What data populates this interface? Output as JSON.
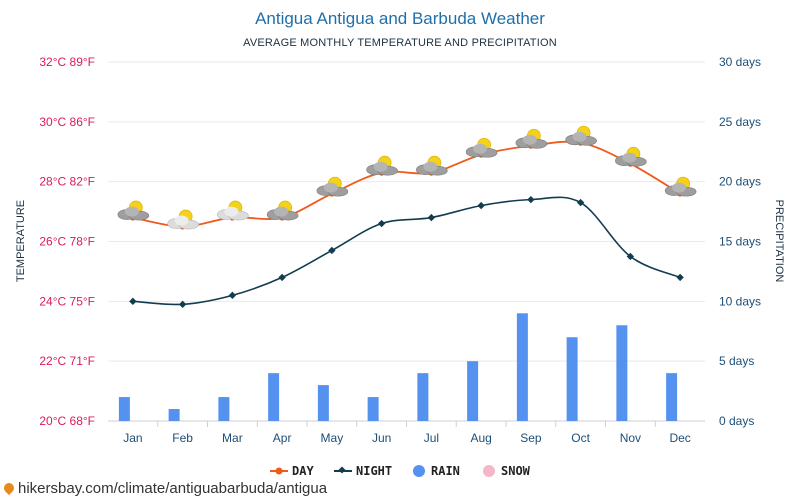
{
  "title": "Antigua Antigua and Barbuda Weather",
  "subtitle": "AVERAGE MONTHLY TEMPERATURE AND PRECIPITATION",
  "left_axis": {
    "label": "TEMPERATURE",
    "ticks": [
      "20°C 68°F",
      "22°C 71°F",
      "24°C 75°F",
      "26°C 78°F",
      "28°C 82°F",
      "30°C 86°F",
      "32°C 89°F"
    ]
  },
  "right_axis": {
    "label": "PRECIPITATION",
    "ticks": [
      "0 days",
      "5 days",
      "10 days",
      "15 days",
      "20 days",
      "25 days",
      "30 days"
    ]
  },
  "source": "hikersbay.com/climate/antiguabarbuda/antigua",
  "colors": {
    "day": "#f05a1a",
    "night": "#123d4f",
    "rain": "#5592f0",
    "snow": "#f5b6c8",
    "left_axis": "#d81b60",
    "right_axis": "#1c4f78"
  },
  "chart_data": {
    "type": "line",
    "categories": [
      "Jan",
      "Feb",
      "Mar",
      "Apr",
      "May",
      "Jun",
      "Jul",
      "Aug",
      "Sep",
      "Oct",
      "Nov",
      "Dec"
    ],
    "left_ylim": [
      20,
      32
    ],
    "right_ylim": [
      0,
      30
    ],
    "grid": true,
    "legend_position": "bottom",
    "series": [
      {
        "name": "DAY",
        "type": "line",
        "axis": "left",
        "values": [
          26.8,
          26.5,
          26.8,
          26.8,
          27.6,
          28.3,
          28.3,
          28.9,
          29.2,
          29.3,
          28.6,
          27.6
        ]
      },
      {
        "name": "NIGHT",
        "type": "line",
        "axis": "left",
        "values": [
          24.0,
          23.9,
          24.2,
          24.8,
          25.7,
          26.6,
          26.8,
          27.2,
          27.4,
          27.3,
          25.5,
          24.8
        ]
      },
      {
        "name": "RAIN",
        "type": "bar",
        "axis": "right",
        "values": [
          2,
          1,
          2,
          4,
          3,
          2,
          4,
          5,
          9,
          7,
          8,
          4
        ]
      },
      {
        "name": "SNOW",
        "type": "bar",
        "axis": "right",
        "values": [
          0,
          0,
          0,
          0,
          0,
          0,
          0,
          0,
          0,
          0,
          0,
          0
        ]
      }
    ],
    "weather_icons": [
      "partly-cloudy-icon",
      "cloudy-sun-icon",
      "cloudy-sun-icon",
      "partly-cloudy-icon",
      "partly-cloudy-icon",
      "partly-cloudy-icon",
      "partly-cloudy-icon",
      "partly-cloudy-icon",
      "partly-cloudy-icon",
      "partly-cloudy-icon",
      "partly-cloudy-icon",
      "partly-cloudy-icon"
    ]
  }
}
